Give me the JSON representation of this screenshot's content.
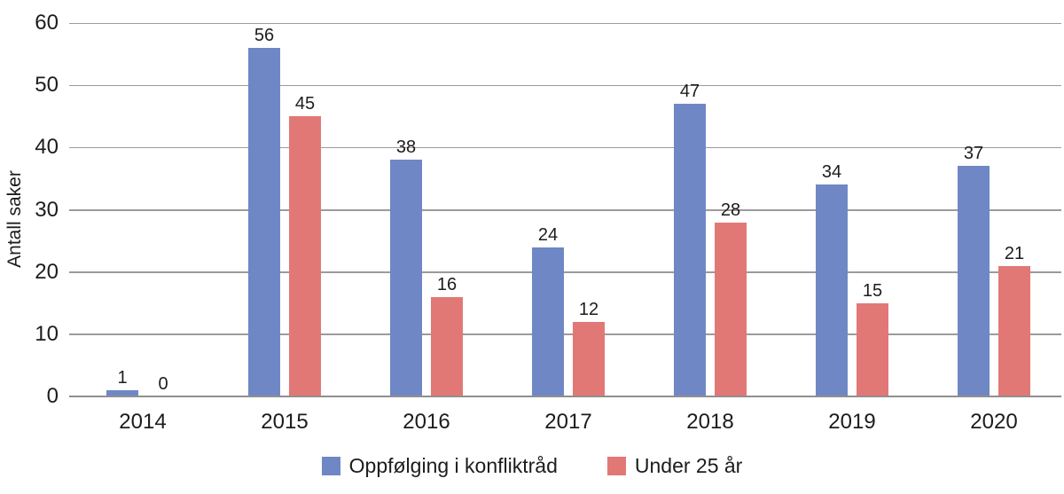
{
  "colors": {
    "series_blue": "#6F87C4",
    "series_red": "#E27876",
    "gridline": "#9B9B9B",
    "axis_line": "#8F8F8F",
    "text": "#1C1C1C",
    "background": "#FFFFFF"
  },
  "chart_data": {
    "type": "bar",
    "title": "",
    "xlabel": "",
    "ylabel": "Antall saker",
    "categories": [
      "2014",
      "2015",
      "2016",
      "2017",
      "2018",
      "2019",
      "2020"
    ],
    "series": [
      {
        "name": "Oppfølging i konfliktråd",
        "color": "#6F87C4",
        "values": [
          1,
          56,
          38,
          24,
          47,
          34,
          37
        ]
      },
      {
        "name": "Under 25 år",
        "color": "#E27876",
        "values": [
          0,
          45,
          16,
          12,
          28,
          15,
          21
        ]
      }
    ],
    "ylim": [
      0,
      60
    ],
    "yticks": [
      0,
      10,
      20,
      30,
      40,
      50,
      60
    ],
    "grid": true,
    "bar_value_labels_shown": true,
    "legend_position": "bottom"
  }
}
